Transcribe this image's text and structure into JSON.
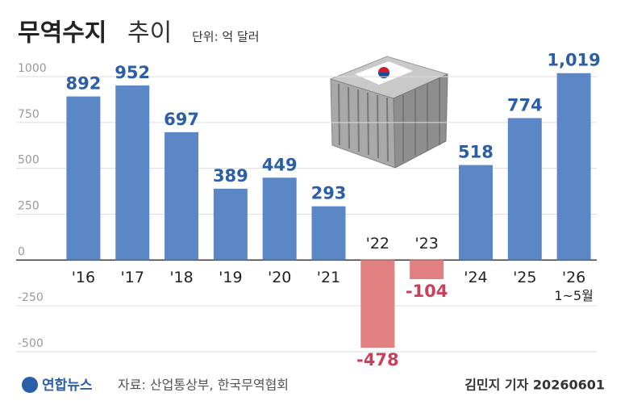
{
  "chart_data": {
    "type": "bar",
    "title": "무역수지",
    "title_suffix": "추이",
    "unit": "단위: 억 달러",
    "categories": [
      "'16",
      "'17",
      "'18",
      "'19",
      "'20",
      "'21",
      "'22",
      "'23",
      "'24",
      "'25",
      "'26"
    ],
    "category_note": "1~5월",
    "values": [
      892,
      952,
      697,
      389,
      449,
      293,
      -478,
      -104,
      518,
      774,
      1019
    ],
    "value_labels": [
      "892",
      "952",
      "697",
      "389",
      "449",
      "293",
      "-478",
      "-104",
      "518",
      "774",
      "1,019"
    ],
    "color": "#5b87c7",
    "negative_color": "#e08080",
    "ylim": [
      -500,
      1000
    ],
    "yticks": [
      -500,
      -250,
      0,
      250,
      500,
      750,
      1000
    ],
    "grid": true,
    "source": "자료: 산업통상부, 한국무역협회",
    "logo": "연합뉴스",
    "credit": "김민지 기자 20260601"
  }
}
